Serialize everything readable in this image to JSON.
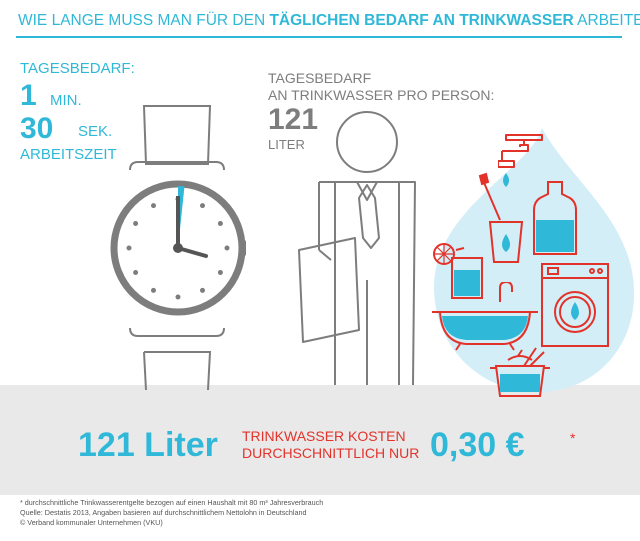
{
  "header": {
    "prefix": "WIE LANGE MUSS MAN FÜR DEN ",
    "bold": "TÄGLICHEN BEDARF AN TRINKWASSER",
    "suffix": " ARBEITEN?"
  },
  "tagesbedarf": {
    "label": "TAGESBEDARF:",
    "minutes_value": "1",
    "minutes_unit": "MIN.",
    "seconds_value": "30",
    "seconds_unit": "SEK.",
    "suffix": "ARBEITSZEIT"
  },
  "per_person": {
    "label_line1": "TAGESBEDARF",
    "label_line2": "AN TRINKWASSER PRO PERSON:",
    "value": "121",
    "unit": "LITER"
  },
  "cost": {
    "liters": "121 Liter",
    "text_line1": "TRINKWASSER KOSTEN",
    "text_line2": "DURCHSCHNITTLICH NUR",
    "price": "0,30 €",
    "asterisk": "*"
  },
  "footer": {
    "line1": "* durchschnittliche Trinkwasserentgelte bezogen auf einen Haushalt mit 80 m³ Jahresverbrauch",
    "line2": "Quelle: Destatis 2013, Angaben basieren auf durchschnittlichem Nettolohn in Deutschland",
    "line3": "© Verband kommunaler Unternehmen (VKU)"
  },
  "colors": {
    "cyan": "#2fb8d8",
    "grey": "#7d7d7d",
    "red": "#e2332b",
    "band": "#e9e9e9",
    "drop": "#d4eef8"
  },
  "icons": [
    "watch-icon",
    "businessman-icon",
    "water-drop-icon",
    "tap-icon",
    "toothbrush-icon",
    "glass-icon",
    "hot-water-bottle-icon",
    "drink-glass-icon",
    "bathtub-icon",
    "washing-machine-icon",
    "cooking-pot-icon"
  ]
}
